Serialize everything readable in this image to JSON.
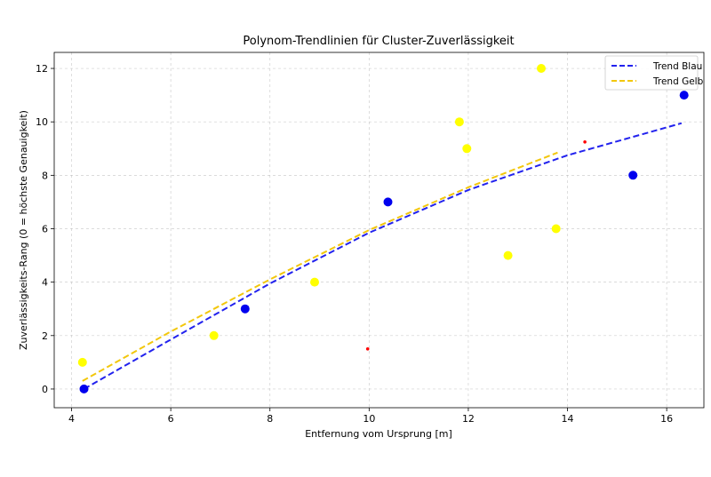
{
  "chart_data": {
    "type": "scatter",
    "title": "Polynom-Trendlinien für Cluster-Zuverlässigkeit",
    "xlabel": "Entfernung vom Ursprung [m]",
    "ylabel": "Zuverlässigkeits-Rang (0 = höchste Genauigkeit)",
    "xlim": [
      3.65,
      16.75
    ],
    "ylim": [
      -0.7,
      12.6
    ],
    "x_ticks": [
      4,
      6,
      8,
      10,
      12,
      14,
      16
    ],
    "y_ticks": [
      0,
      2,
      4,
      6,
      8,
      10,
      12
    ],
    "grid": true,
    "legend_position": "top-right",
    "colors": {
      "blue": "#0000ee",
      "yellow": "#ffff00",
      "trend_blue": "#2222ee",
      "trend_yellow": "#f2c70c",
      "red": "#ff0000"
    },
    "series": [
      {
        "color": "blue",
        "points": [
          {
            "x": 4.25,
            "y": 0
          },
          {
            "x": 7.5,
            "y": 3
          },
          {
            "x": 10.38,
            "y": 7
          },
          {
            "x": 15.32,
            "y": 8
          },
          {
            "x": 16.35,
            "y": 11
          }
        ]
      },
      {
        "color": "yellow",
        "points": [
          {
            "x": 4.22,
            "y": 1
          },
          {
            "x": 6.87,
            "y": 2
          },
          {
            "x": 8.9,
            "y": 4
          },
          {
            "x": 11.82,
            "y": 10
          },
          {
            "x": 11.97,
            "y": 9
          },
          {
            "x": 12.8,
            "y": 5
          },
          {
            "x": 13.47,
            "y": 12
          },
          {
            "x": 13.77,
            "y": 6
          }
        ]
      },
      {
        "color": "red",
        "points": [
          {
            "x": 9.97,
            "y": 1.5
          },
          {
            "x": 14.35,
            "y": 9.25
          }
        ]
      }
    ],
    "trendlines": [
      {
        "name": "Trend Blau",
        "color": "trend_blue",
        "style": "dashed",
        "points": [
          {
            "x": 4.25,
            "y": 0
          },
          {
            "x": 6,
            "y": 1.85
          },
          {
            "x": 8,
            "y": 3.95
          },
          {
            "x": 10,
            "y": 5.85
          },
          {
            "x": 12,
            "y": 7.45
          },
          {
            "x": 14,
            "y": 8.75
          },
          {
            "x": 16.3,
            "y": 9.95
          }
        ]
      },
      {
        "name": "Trend Gelb",
        "color": "trend_yellow",
        "style": "dashed",
        "points": [
          {
            "x": 4.22,
            "y": 0.3
          },
          {
            "x": 6,
            "y": 2.15
          },
          {
            "x": 8,
            "y": 4.1
          },
          {
            "x": 10,
            "y": 5.95
          },
          {
            "x": 12,
            "y": 7.55
          },
          {
            "x": 13.8,
            "y": 8.85
          }
        ]
      }
    ]
  }
}
